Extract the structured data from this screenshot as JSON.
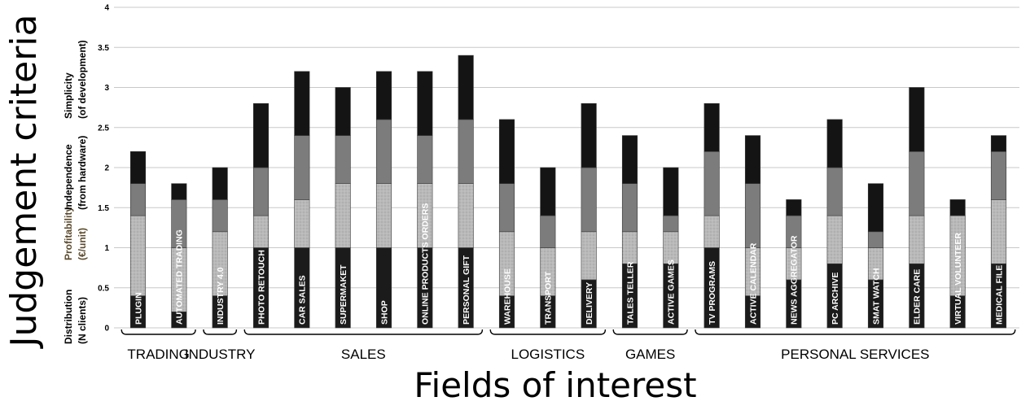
{
  "chart_data": {
    "type": "bar",
    "stacked": true,
    "title": "",
    "xlabel": "Fields of interest",
    "ylabel": "Judgement criteria",
    "ylim": [
      0,
      4
    ],
    "yticks": [
      "0",
      "0.5",
      "1",
      "1.5",
      "2",
      "2.5",
      "3",
      "3.5",
      "4"
    ],
    "grid": "horizontal",
    "legend_placement": "left, rotated",
    "legend": [
      {
        "line1": "Distribution",
        "line2": "(N clients)",
        "color": "#1b1b1b"
      },
      {
        "line1": "Profitability",
        "line2": "(€/unit)",
        "color": "#b9b9b9"
      },
      {
        "line1": "Independence",
        "line2": "(from hardware)",
        "color": "#7c7c7c"
      },
      {
        "line1": "Simplicity",
        "line2": "(of development)",
        "color": "#141414"
      }
    ],
    "categories": [
      "PLUGIN",
      "AUTOMATED TRADING",
      "INDUSTRY 4.0",
      "PHOTO RETOUCH",
      "CAR SALES",
      "SUPERMAKET",
      "SHOP",
      "ONLINE PRODUCTS ORDERS",
      "PERSONAL GIFT",
      "WAREHOUSE",
      "TRANSPORT",
      "DELIVERY",
      "TALES TELLER",
      "ACTIVE GAMES",
      "TV PROGRAMS",
      "ACTIVE CALENDAR",
      "NEWS AGGREGATOR",
      "PC ARCHIVE",
      "SMAT WATCH",
      "ELDER CARE",
      "VIRTUAL VOLUNTEER",
      "MEDICAL FILE"
    ],
    "series": [
      {
        "name": "Distribution",
        "values": [
          0.4,
          0.2,
          0.4,
          1.0,
          1.0,
          1.0,
          1.0,
          1.0,
          1.0,
          0.4,
          0.4,
          0.6,
          0.8,
          0.8,
          1.0,
          0.4,
          0.6,
          0.8,
          0.6,
          0.8,
          0.4,
          0.8
        ]
      },
      {
        "name": "Profitability",
        "values": [
          1.0,
          0.8,
          0.8,
          0.4,
          0.6,
          0.8,
          0.8,
          0.8,
          0.8,
          0.8,
          0.6,
          0.6,
          0.4,
          0.4,
          0.4,
          0.6,
          0.4,
          0.6,
          0.4,
          0.6,
          1.0,
          0.8
        ]
      },
      {
        "name": "Independence",
        "values": [
          0.4,
          0.6,
          0.4,
          0.6,
          0.8,
          0.6,
          0.8,
          0.6,
          0.8,
          0.6,
          0.4,
          0.8,
          0.6,
          0.2,
          0.8,
          0.8,
          0.4,
          0.6,
          0.2,
          0.8,
          0.0,
          0.6
        ]
      },
      {
        "name": "Simplicity",
        "values": [
          0.4,
          0.2,
          0.4,
          0.8,
          0.8,
          0.6,
          0.6,
          0.8,
          0.8,
          0.8,
          0.6,
          0.8,
          0.6,
          0.6,
          0.6,
          0.6,
          0.2,
          0.6,
          0.6,
          0.8,
          0.2,
          0.2
        ]
      }
    ],
    "groups": [
      {
        "label": "TRADING",
        "start": 0,
        "end": 1
      },
      {
        "label": "INDUSTRY",
        "start": 2,
        "end": 2
      },
      {
        "label": "SALES",
        "start": 3,
        "end": 8
      },
      {
        "label": "LOGISTICS",
        "start": 9,
        "end": 11
      },
      {
        "label": "GAMES",
        "start": 12,
        "end": 13
      },
      {
        "label": "PERSONAL SERVICES",
        "start": 14,
        "end": 21
      }
    ],
    "colors": {
      "distribution": "#1b1b1b",
      "profitability": "#b9b9b9",
      "independence": "#7c7c7c",
      "simplicity": "#141414",
      "grid": "#c8c8c8"
    }
  }
}
